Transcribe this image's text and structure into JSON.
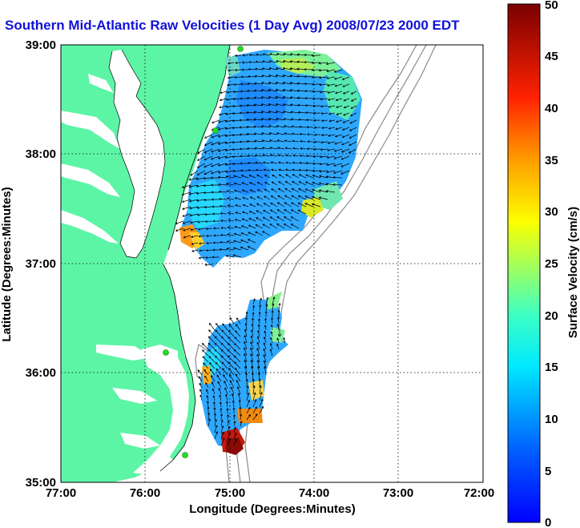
{
  "title": "Southern Mid-Atlantic Raw Velocities (1 Day Avg) 2008/07/23 2000 EDT",
  "x_axis": {
    "label": "Longitude (Degrees:Minutes)",
    "ticks": [
      "77:00",
      "76:00",
      "75:00",
      "74:00",
      "73:00",
      "72:00"
    ]
  },
  "y_axis": {
    "label": "Latitude (Degrees:Minutes)",
    "ticks": [
      "35:00",
      "36:00",
      "37:00",
      "38:00",
      "39:00"
    ]
  },
  "colorbar": {
    "label": "Surface Velocity (cm/s)",
    "min": 0,
    "max": 50,
    "ticks": [
      "0",
      "5",
      "10",
      "15",
      "20",
      "25",
      "30",
      "35",
      "40",
      "45",
      "50"
    ]
  },
  "colors": {
    "land": "#5cf5a6",
    "water": "#ffffff",
    "title": "#1212d8",
    "bathymetry": "#8a8a8a",
    "site_marker": "#22dd22"
  },
  "map_extent": {
    "lon": [
      -77,
      -72
    ],
    "lat": [
      35,
      39
    ]
  }
}
